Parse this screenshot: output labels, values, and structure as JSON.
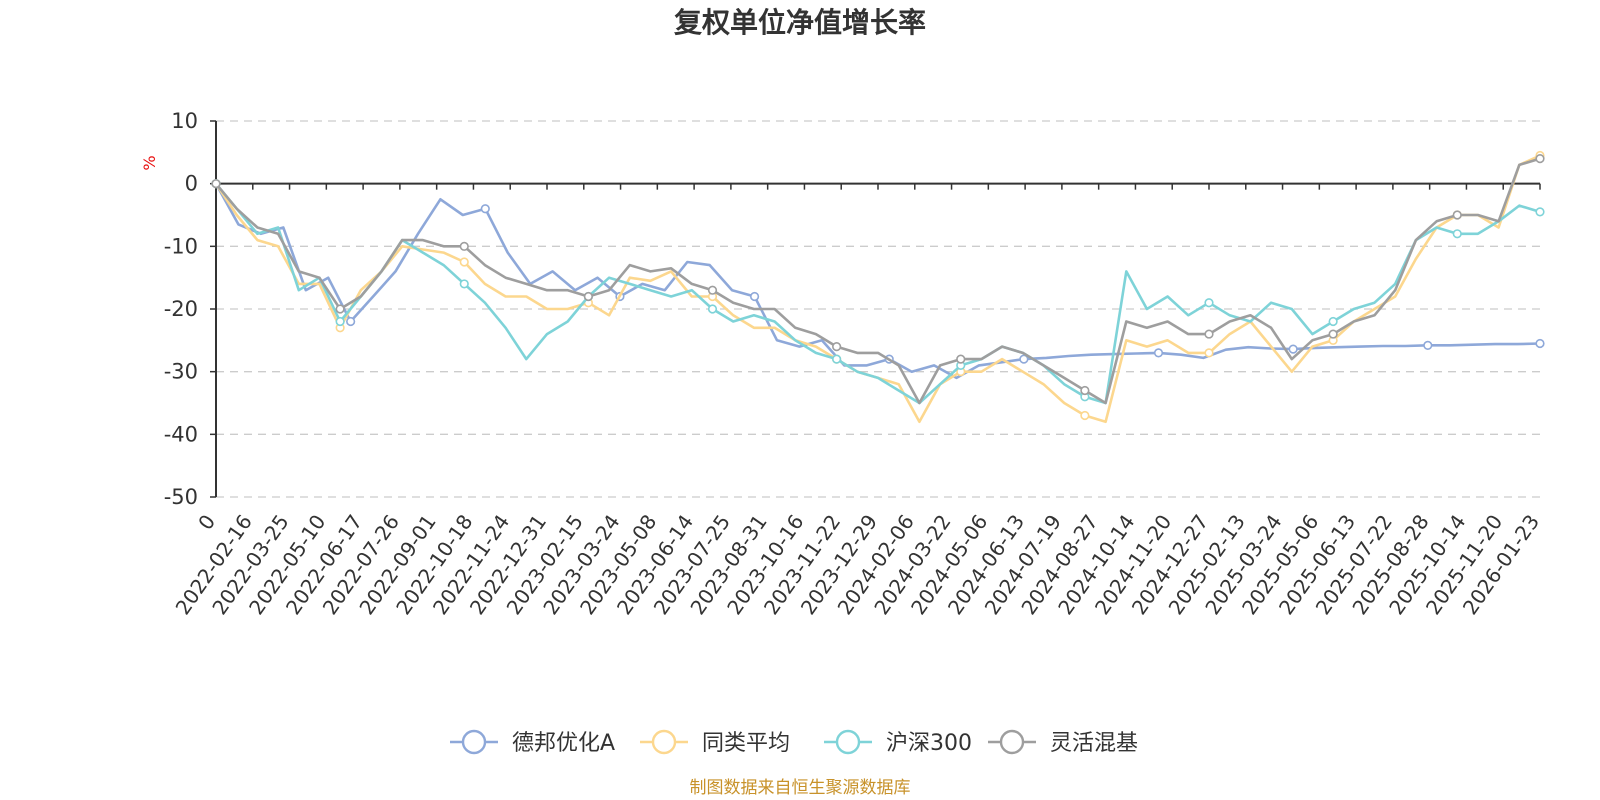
{
  "chart_data": {
    "type": "line",
    "title": "复权单位净值增长率",
    "ylabel": "%",
    "ylim": [
      -50,
      10
    ],
    "yticks": [
      10,
      0,
      -10,
      -20,
      -30,
      -40,
      -50
    ],
    "x_tick_labels": [
      "0",
      "2022-02-16",
      "2022-03-25",
      "2022-05-10",
      "2022-06-17",
      "2022-07-26",
      "2022-09-01",
      "2022-10-18",
      "2022-11-24",
      "2022-12-31",
      "2023-02-15",
      "2023-03-24",
      "2023-05-08",
      "2023-06-14",
      "2023-07-25",
      "2023-08-31",
      "2023-10-16",
      "2023-11-22",
      "2023-12-29",
      "2024-02-06",
      "2024-03-22",
      "2024-05-06",
      "2024-06-13",
      "2024-07-19",
      "2024-08-27",
      "2024-10-14",
      "2024-11-20",
      "2024-12-27",
      "2025-02-13",
      "2025-03-24",
      "2025-05-06",
      "2025-06-13",
      "2025-07-22",
      "2025-08-28",
      "2025-10-14",
      "2025-11-20",
      "2026-01-23"
    ],
    "grid": "horizontal-dashed",
    "legend_position": "bottom-center",
    "series": [
      {
        "name": "德邦优化A",
        "color": "#8ea8d9",
        "values": [
          0,
          -6.5,
          -8,
          -7,
          -17,
          -15,
          -22,
          -18,
          -14,
          -8,
          -2.5,
          -5,
          -4,
          -11,
          -16,
          -14,
          -17,
          -15,
          -18,
          -16,
          -17,
          -12.5,
          -13,
          -17,
          -18,
          -25,
          -26,
          -25,
          -29,
          -29,
          -28,
          -30,
          -29,
          -31,
          -29,
          -28.5,
          -28,
          -27.8,
          -27.5,
          -27.3,
          -27.2,
          -27.1,
          -27.0,
          -27.3,
          -27.8,
          -26.5,
          -26.1,
          -26.3,
          -26.4,
          -26.2,
          -26.1,
          -26.0,
          -25.9,
          -25.9,
          -25.8,
          -25.8,
          -25.7,
          -25.6,
          -25.6,
          -25.5
        ]
      },
      {
        "name": "同类平均",
        "color": "#fcd78e",
        "values": [
          0,
          -5,
          -9,
          -10,
          -16,
          -16,
          -23,
          -17,
          -14,
          -10,
          -10.5,
          -11,
          -12.5,
          -16,
          -18,
          -18,
          -20,
          -20,
          -19,
          -21,
          -15,
          -15.5,
          -14,
          -18,
          -18,
          -21,
          -23,
          -23,
          -25,
          -26,
          -28,
          -30,
          -31,
          -32,
          -38,
          -32,
          -30,
          -30,
          -28,
          -30,
          -32,
          -35,
          -37,
          -38,
          -25,
          -26,
          -25,
          -27,
          -27,
          -24,
          -22,
          -26,
          -30,
          -26,
          -25,
          -22,
          -20,
          -18,
          -12,
          -7,
          -5,
          -5,
          -7,
          3,
          4.5
        ]
      },
      {
        "name": "沪深300",
        "color": "#7ed3d8",
        "values": [
          0,
          -4,
          -8,
          -7,
          -17,
          -15,
          -22,
          -18,
          -14,
          -9,
          -11,
          -13,
          -16,
          -19,
          -23,
          -28,
          -24,
          -22,
          -18,
          -15,
          -16,
          -17,
          -18,
          -17,
          -20,
          -22,
          -21,
          -22,
          -25,
          -27,
          -28,
          -30,
          -31,
          -33,
          -35,
          -32,
          -29,
          -28,
          -26,
          -27,
          -29,
          -32,
          -34,
          -35,
          -14,
          -20,
          -18,
          -21,
          -19,
          -21,
          -22,
          -19,
          -20,
          -24,
          -22,
          -20,
          -19,
          -16,
          -9,
          -7,
          -8,
          -8,
          -6,
          -3.5,
          -4.5
        ]
      },
      {
        "name": "灵活混基",
        "color": "#9e9e9e",
        "values": [
          0,
          -4,
          -7,
          -8,
          -14,
          -15,
          -20,
          -18,
          -14,
          -9,
          -9,
          -10,
          -10,
          -13,
          -15,
          -16,
          -17,
          -17,
          -18,
          -17,
          -13,
          -14,
          -13.5,
          -16,
          -17,
          -19,
          -20,
          -20,
          -23,
          -24,
          -26,
          -27,
          -27,
          -29,
          -35,
          -29,
          -28,
          -28,
          -26,
          -27,
          -29,
          -31,
          -33,
          -35,
          -22,
          -23,
          -22,
          -24,
          -24,
          -22,
          -21,
          -23,
          -28,
          -25,
          -24,
          -22,
          -21,
          -17,
          -9,
          -6,
          -5,
          -5,
          -6,
          3,
          4
        ]
      }
    ]
  },
  "legend": {
    "items": [
      {
        "label": "德邦优化A",
        "color": "#8ea8d9"
      },
      {
        "label": "同类平均",
        "color": "#fcd78e"
      },
      {
        "label": "沪深300",
        "color": "#7ed3d8"
      },
      {
        "label": "灵活混基",
        "color": "#9e9e9e"
      }
    ]
  },
  "footer": {
    "source": "制图数据来自恒生聚源数据库"
  }
}
